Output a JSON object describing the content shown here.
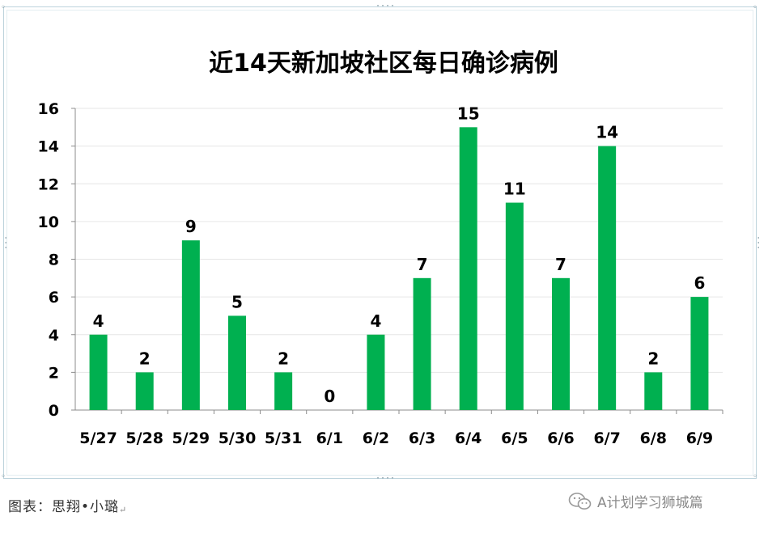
{
  "chart_data": {
    "type": "bar",
    "title": "近14天新加坡社区每日确诊病例",
    "categories": [
      "5/27",
      "5/28",
      "5/29",
      "5/30",
      "5/31",
      "6/1",
      "6/2",
      "6/3",
      "6/4",
      "6/5",
      "6/6",
      "6/7",
      "6/8",
      "6/9"
    ],
    "values": [
      4,
      2,
      9,
      5,
      2,
      0,
      4,
      7,
      15,
      11,
      7,
      14,
      2,
      6
    ],
    "data_labels": [
      "4",
      "2",
      "9",
      "5",
      "2",
      "0",
      "4",
      "7",
      "15",
      "11",
      "7",
      "14",
      "2",
      "6"
    ],
    "ylim": [
      0,
      16
    ],
    "yticks": [
      0,
      2,
      4,
      6,
      8,
      10,
      12,
      14,
      16
    ],
    "ytick_labels": [
      "0",
      "2",
      "4",
      "6",
      "8",
      "10",
      "12",
      "14",
      "16"
    ],
    "xlabel": "",
    "ylabel": "",
    "grid": true,
    "bar_color": "#00b050"
  },
  "footer": {
    "credit": "图表：思翔•小璐",
    "return_mark": "↵",
    "watermark": "A计划学习狮城篇",
    "watermark_icon": "wechat-icon"
  }
}
